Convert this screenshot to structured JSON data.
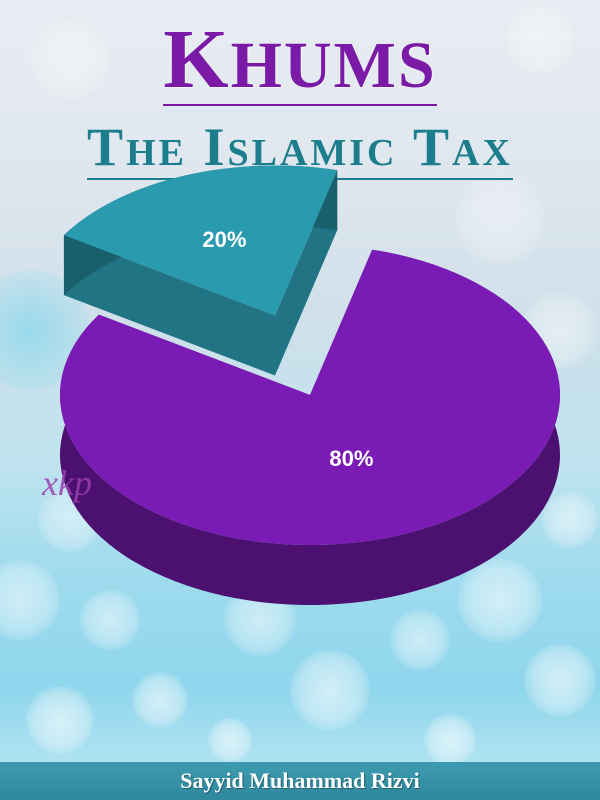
{
  "cover": {
    "title": "Khums",
    "subtitle": "The Islamic Tax",
    "publisher": "xkp",
    "author": "Sayyid Muhammad Rizvi"
  },
  "colors": {
    "title": "#7a1aa6",
    "subtitle": "#1c7d8c",
    "small_slice": "#2a9aae",
    "large_slice": "#7b1bb5",
    "author_bar": "#3593a8"
  },
  "chart_data": {
    "type": "pie",
    "slices": [
      {
        "label": "20%",
        "value": 20,
        "color": "#2a9aae"
      },
      {
        "label": "80%",
        "value": 80,
        "color": "#7b1bb5"
      }
    ]
  }
}
